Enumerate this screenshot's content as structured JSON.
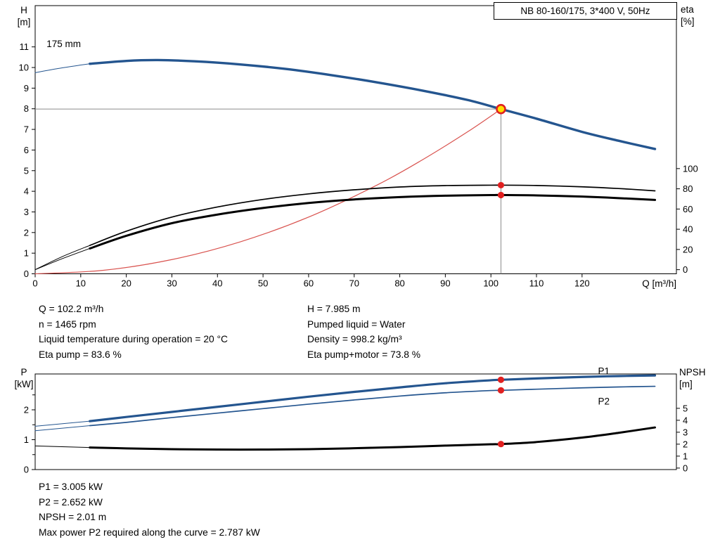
{
  "info_top": {
    "left": [
      "Q = 102.2 m³/h",
      "n = 1465 rpm",
      "Liquid temperature during operation = 20 °C",
      "Eta pump = 83.6 %"
    ],
    "right": [
      "H = 7.985 m",
      "Pumped liquid = Water",
      "Density = 998.2 kg/m³",
      "Eta pump+motor = 73.8 %"
    ]
  },
  "info_bottom": {
    "lines": [
      "P1 = 3.005 kW",
      "P2 = 2.652 kW",
      "NPSH = 2.01 m",
      "Max power P2 required along the curve = 2.787 kW"
    ]
  },
  "colors": {
    "curve_blue": "#24558f",
    "label_blue": "#2f6db3",
    "marker_red": "#e02020",
    "system_red": "#d9534f",
    "duty_yellow": "#ffdf00",
    "crosshair_gray": "#8a8a8a"
  },
  "chart_data": [
    {
      "id": "qh-eta",
      "type": "line",
      "title": "NB 80-160/175, 3*400 V, 50Hz",
      "x_axis": {
        "label": "Q [m³/h]",
        "min": 0,
        "max": 140.7,
        "ticks": [
          0,
          10,
          20,
          30,
          40,
          50,
          60,
          70,
          80,
          90,
          100,
          110,
          120
        ],
        "show_tick_labels": true
      },
      "y_left": {
        "label": "H [m]",
        "label_lines": [
          "H",
          "[m]"
        ],
        "min": 0,
        "max": 13,
        "ticks": [
          0,
          1,
          2,
          3,
          4,
          5,
          6,
          7,
          8,
          9,
          10,
          11
        ]
      },
      "y_right": {
        "label": "eta [%]",
        "label_lines": [
          "eta",
          "[%]"
        ],
        "min": 0,
        "max": 100,
        "ticks": [
          0,
          20,
          40,
          60,
          80,
          100
        ],
        "maps_to_left": [
          0.2,
          5.1
        ]
      },
      "series": [
        {
          "name": "system-curve",
          "axis": "left",
          "color": "#d9534f",
          "width": 1.2,
          "points": [
            [
              0,
              0
            ],
            [
              15,
              0.17
            ],
            [
              30,
              0.69
            ],
            [
              45,
              1.55
            ],
            [
              60,
              2.75
            ],
            [
              75,
              4.3
            ],
            [
              85,
              5.53
            ],
            [
              95,
              6.9
            ],
            [
              102.2,
              7.985
            ]
          ]
        },
        {
          "name": "eta-pump",
          "axis": "right",
          "color": "#000000",
          "width": 1.7,
          "thin_lead_until": 12,
          "points": [
            [
              0,
              0
            ],
            [
              6,
              13
            ],
            [
              12,
              24
            ],
            [
              20,
              38
            ],
            [
              30,
              52
            ],
            [
              40,
              62
            ],
            [
              50,
              69.5
            ],
            [
              60,
              75
            ],
            [
              70,
              79
            ],
            [
              80,
              81.8
            ],
            [
              90,
              83.2
            ],
            [
              100,
              83.6
            ],
            [
              102.2,
              83.6
            ],
            [
              110,
              83.3
            ],
            [
              120,
              82
            ],
            [
              128,
              80.3
            ],
            [
              136,
              78
            ]
          ]
        },
        {
          "name": "eta-pump-motor",
          "axis": "right",
          "color": "#000000",
          "width": 3,
          "thin_lead_until": 12,
          "points": [
            [
              0,
              0
            ],
            [
              6,
              11
            ],
            [
              12,
              21
            ],
            [
              20,
              33.5
            ],
            [
              30,
              46
            ],
            [
              40,
              54.5
            ],
            [
              50,
              61
            ],
            [
              60,
              66
            ],
            [
              70,
              69.5
            ],
            [
              80,
              71.8
            ],
            [
              90,
              73.2
            ],
            [
              100,
              73.8
            ],
            [
              102.2,
              73.8
            ],
            [
              110,
              73.5
            ],
            [
              120,
              72.3
            ],
            [
              128,
              70.8
            ],
            [
              136,
              69
            ]
          ]
        },
        {
          "name": "head-175mm",
          "axis": "left",
          "color": "#24558f",
          "width": 3.4,
          "thin_lead_until": 12,
          "points": [
            [
              0,
              9.75
            ],
            [
              5,
              9.95
            ],
            [
              10,
              10.12
            ],
            [
              12,
              10.18
            ],
            [
              20,
              10.32
            ],
            [
              27,
              10.36
            ],
            [
              35,
              10.3
            ],
            [
              45,
              10.15
            ],
            [
              55,
              9.93
            ],
            [
              65,
              9.63
            ],
            [
              75,
              9.28
            ],
            [
              85,
              8.88
            ],
            [
              95,
              8.42
            ],
            [
              102.2,
              7.985
            ],
            [
              110,
              7.52
            ],
            [
              120,
              6.88
            ],
            [
              128,
              6.45
            ],
            [
              136,
              6.05
            ]
          ]
        }
      ],
      "crosshair": {
        "x": 102.2,
        "y": 7.985,
        "color": "#8a8a8a"
      },
      "markers": [
        {
          "x": 102.2,
          "y": 7.985,
          "axis": "left",
          "kind": "duty-point"
        },
        {
          "x": 102.2,
          "y": 83.6,
          "axis": "right",
          "kind": "dot"
        },
        {
          "x": 102.2,
          "y": 73.8,
          "axis": "right",
          "kind": "dot"
        }
      ],
      "annotations": [
        {
          "text": "175 mm",
          "x": 2.5,
          "y": 11.15,
          "axis": "left",
          "color": "#000000"
        }
      ]
    },
    {
      "id": "power-npsh",
      "type": "line",
      "title": "",
      "x_axis": {
        "label": "",
        "min": 0,
        "max": 140.7,
        "ticks": [],
        "show_tick_labels": false
      },
      "y_left": {
        "label": "P [kW]",
        "label_lines": [
          "P",
          "[kW]"
        ],
        "min": 0,
        "max": 3.2,
        "ticks": [
          0,
          1,
          2
        ],
        "minor_ticks": [
          0.5,
          1.5,
          2.5
        ]
      },
      "y_right": {
        "label": "NPSH [m]",
        "label_lines": [
          "NPSH",
          "[m]"
        ],
        "min": 0,
        "max": 5,
        "ticks": [
          0,
          1,
          2,
          3,
          4,
          5
        ],
        "maps_to_left": [
          0.05,
          2.05
        ]
      },
      "series": [
        {
          "name": "p1-power",
          "axis": "left",
          "color": "#24558f",
          "width": 3.2,
          "thin_lead_until": 12,
          "points": [
            [
              0,
              1.45
            ],
            [
              12,
              1.62
            ],
            [
              20,
              1.76
            ],
            [
              30,
              1.93
            ],
            [
              40,
              2.1
            ],
            [
              50,
              2.27
            ],
            [
              60,
              2.44
            ],
            [
              70,
              2.6
            ],
            [
              80,
              2.75
            ],
            [
              90,
              2.89
            ],
            [
              100,
              2.99
            ],
            [
              102.2,
              3.005
            ],
            [
              110,
              3.05
            ],
            [
              120,
              3.1
            ],
            [
              128,
              3.13
            ],
            [
              136,
              3.15
            ]
          ]
        },
        {
          "name": "p2-power",
          "axis": "left",
          "color": "#24558f",
          "width": 1.7,
          "thin_lead_until": 12,
          "points": [
            [
              0,
              1.3
            ],
            [
              12,
              1.47
            ],
            [
              20,
              1.58
            ],
            [
              30,
              1.74
            ],
            [
              40,
              1.89
            ],
            [
              50,
              2.04
            ],
            [
              60,
              2.19
            ],
            [
              70,
              2.33
            ],
            [
              80,
              2.46
            ],
            [
              90,
              2.57
            ],
            [
              100,
              2.645
            ],
            [
              102.2,
              2.652
            ],
            [
              110,
              2.69
            ],
            [
              120,
              2.735
            ],
            [
              128,
              2.765
            ],
            [
              136,
              2.787
            ]
          ]
        },
        {
          "name": "npsh-curve",
          "axis": "right",
          "color": "#000000",
          "width": 3,
          "thin_lead_until": 12,
          "points": [
            [
              0,
              1.85
            ],
            [
              12,
              1.72
            ],
            [
              20,
              1.65
            ],
            [
              30,
              1.58
            ],
            [
              40,
              1.55
            ],
            [
              50,
              1.55
            ],
            [
              60,
              1.58
            ],
            [
              70,
              1.66
            ],
            [
              80,
              1.76
            ],
            [
              90,
              1.88
            ],
            [
              100,
              1.99
            ],
            [
              102.2,
              2.01
            ],
            [
              110,
              2.18
            ],
            [
              120,
              2.55
            ],
            [
              128,
              2.95
            ],
            [
              136,
              3.4
            ]
          ]
        }
      ],
      "markers": [
        {
          "x": 102.2,
          "y": 3.005,
          "axis": "left",
          "kind": "dot"
        },
        {
          "x": 102.2,
          "y": 2.652,
          "axis": "left",
          "kind": "dot"
        },
        {
          "x": 102.2,
          "y": 2.01,
          "axis": "right",
          "kind": "dot"
        }
      ],
      "annotations": [
        {
          "text": "P1",
          "x": 123.5,
          "y": 3.3,
          "axis": "left",
          "color": "#2f6db3"
        },
        {
          "text": "P2",
          "x": 123.5,
          "y": 2.28,
          "axis": "left",
          "color": "#2f6db3"
        }
      ]
    }
  ]
}
